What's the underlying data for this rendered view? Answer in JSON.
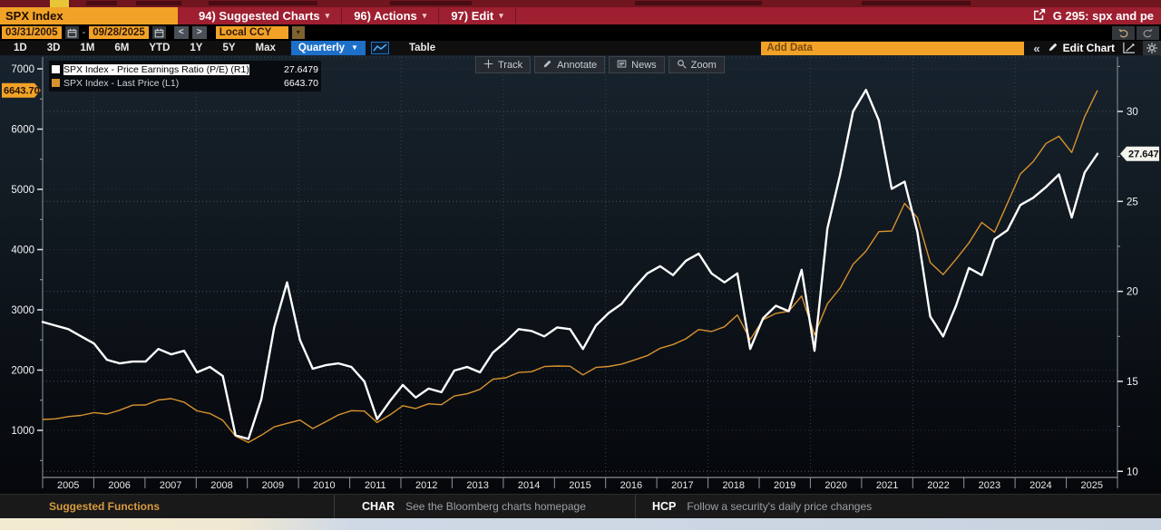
{
  "colors": {
    "bar_red": "#9d1f30",
    "accent_orange": "#f2a227",
    "highlight_blue": "#1d6fc8",
    "line_white": "#ffffff",
    "line_orange": "#d9922f"
  },
  "title_bar": {
    "security_input": "SPX Index",
    "menus": [
      {
        "label": "94) Suggested Charts",
        "caret": "▾"
      },
      {
        "label": "96) Actions",
        "caret": "▾"
      },
      {
        "label": "97) Edit",
        "caret": "▾"
      }
    ],
    "chart_ref": "G 295: spx and pe"
  },
  "date_row": {
    "start_date": "03/31/2005",
    "dash": "-",
    "end_date": "09/28/2025",
    "prev_label": "<",
    "next_label": ">",
    "currency_label": "Local CCY",
    "caret": "▾"
  },
  "period_row": {
    "ranges": [
      "1D",
      "3D",
      "1M",
      "6M",
      "YTD",
      "1Y",
      "5Y",
      "Max"
    ],
    "frequency_label": "Quarterly",
    "frequency_caret": "▼",
    "table_label": "Table",
    "add_data": "Add Data",
    "collapse_label": "«",
    "edit_chart_label": "Edit Chart"
  },
  "chart_toolbar": {
    "buttons": [
      {
        "icon": "crosshair-icon",
        "label": "Track"
      },
      {
        "icon": "pencil-icon",
        "label": "Annotate"
      },
      {
        "icon": "news-icon",
        "label": "News"
      },
      {
        "icon": "magnifier-icon",
        "label": "Zoom"
      }
    ]
  },
  "legend": {
    "items": [
      {
        "swatch": "#ffffff",
        "label": "SPX Index - Price Earnings Ratio (P/E) (R1)",
        "value": "27.6479",
        "highlighted": true
      },
      {
        "swatch": "#d9922f",
        "label": "SPX Index - Last Price (L1)",
        "value": "6643.70",
        "highlighted": false
      }
    ]
  },
  "chart_data": {
    "type": "line",
    "frequency": "Quarterly",
    "x_start": "2005-Q1",
    "x_end": "2025-Q3",
    "year_labels": [
      "2005",
      "2006",
      "2007",
      "2008",
      "2009",
      "2010",
      "2011",
      "2012",
      "2013",
      "2014",
      "2015",
      "2016",
      "2017",
      "2018",
      "2019",
      "2020",
      "2021",
      "2022",
      "2023",
      "2024",
      "2025"
    ],
    "left_axis": {
      "ticks": [
        7000,
        6000,
        5000,
        4000,
        3000,
        2000,
        1000
      ],
      "tag": "6643.70"
    },
    "right_axis": {
      "ticks": [
        30,
        25,
        20,
        15,
        10
      ],
      "tag": "27.6479"
    },
    "grid": "dotted",
    "series": [
      {
        "name": "SPX Index - Price Earnings Ratio (P/E) (R1)",
        "axis": "right",
        "color": "#ffffff",
        "last_value": 27.6479,
        "values": [
          18.3,
          18.1,
          17.9,
          17.5,
          17.1,
          16.2,
          16.0,
          16.1,
          16.1,
          16.8,
          16.5,
          16.7,
          15.5,
          15.8,
          15.3,
          12.0,
          11.8,
          14.0,
          18.0,
          20.5,
          17.3,
          15.7,
          15.9,
          16.0,
          15.8,
          15.0,
          12.9,
          13.9,
          14.8,
          14.1,
          14.6,
          14.4,
          15.6,
          15.8,
          15.5,
          16.6,
          17.2,
          17.9,
          17.8,
          17.5,
          18.0,
          17.9,
          16.8,
          18.1,
          18.8,
          19.3,
          20.2,
          21.0,
          21.4,
          20.9,
          21.7,
          22.1,
          21.0,
          20.5,
          21.0,
          16.8,
          18.5,
          19.2,
          18.9,
          21.2,
          16.7,
          23.5,
          26.5,
          30.0,
          31.2,
          29.5,
          25.7,
          26.1,
          23.3,
          18.6,
          17.5,
          19.2,
          21.3,
          20.9,
          22.9,
          23.4,
          24.8,
          25.2,
          25.8,
          26.5,
          24.1,
          26.6,
          27.6479
        ]
      },
      {
        "name": "SPX Index - Last Price (L1)",
        "axis": "left",
        "color": "#d9922f",
        "last_value": 6643.7,
        "values": [
          1180.59,
          1191.33,
          1228.81,
          1248.29,
          1294.87,
          1270.2,
          1335.85,
          1418.3,
          1420.86,
          1503.35,
          1526.75,
          1468.36,
          1322.7,
          1280.0,
          1166.36,
          903.25,
          797.87,
          919.32,
          1057.08,
          1115.1,
          1169.43,
          1030.71,
          1141.2,
          1257.64,
          1325.83,
          1320.64,
          1131.42,
          1257.6,
          1408.47,
          1362.16,
          1440.67,
          1426.19,
          1569.19,
          1606.28,
          1681.55,
          1848.36,
          1872.34,
          1960.23,
          1972.29,
          2058.9,
          2067.89,
          2063.11,
          1920.03,
          2043.94,
          2059.74,
          2098.86,
          2168.27,
          2238.83,
          2362.72,
          2423.41,
          2519.36,
          2673.61,
          2640.87,
          2718.37,
          2913.98,
          2506.85,
          2834.4,
          2941.76,
          2976.74,
          3230.78,
          2584.59,
          3100.29,
          3363.0,
          3756.07,
          3972.89,
          4297.5,
          4307.54,
          4766.18,
          4530.41,
          3785.38,
          3585.62,
          3839.5,
          4109.31,
          4450.38,
          4288.05,
          4769.83,
          5254.35,
          5460.48,
          5762.48,
          5881.63,
          5611.85,
          6204.95,
          6643.7
        ]
      }
    ]
  },
  "footer": {
    "suggested_label": "Suggested Functions",
    "items": [
      {
        "code": "CHAR",
        "desc": "See the Bloomberg charts homepage"
      },
      {
        "code": "HCP",
        "desc": "Follow a security's daily price changes"
      }
    ]
  }
}
